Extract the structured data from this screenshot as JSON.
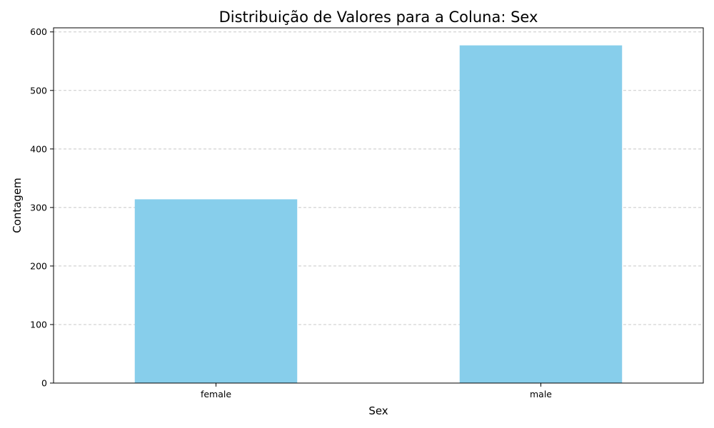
{
  "chart_data": {
    "type": "bar",
    "title": "Distribuição de Valores para a Coluna: Sex",
    "xlabel": "Sex",
    "ylabel": "Contagem",
    "categories": [
      "female",
      "male"
    ],
    "values": [
      314,
      577
    ],
    "ylim": [
      0,
      607
    ],
    "yticks": [
      0,
      100,
      200,
      300,
      400,
      500,
      600
    ],
    "grid": "y-dashed",
    "bar_color": "#87ceeb"
  }
}
